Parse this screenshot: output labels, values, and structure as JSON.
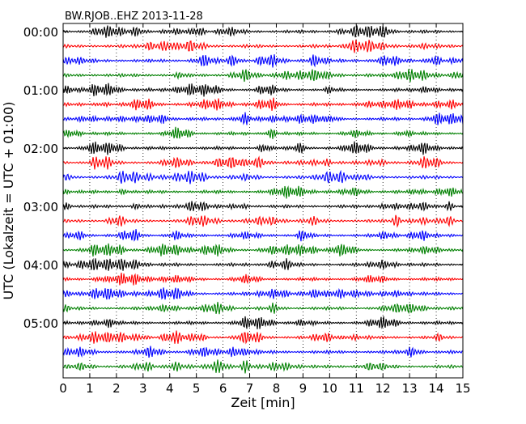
{
  "chart_data": {
    "type": "line",
    "title": "BW.RJOB..EHZ 2013-11-28",
    "xlabel": "Zeit  [min]",
    "ylabel": "UTC (Lokalzeit = UTC + 01:00)",
    "xlim": [
      0,
      15
    ],
    "x_ticks": [
      "0",
      "1",
      "2",
      "3",
      "4",
      "5",
      "6",
      "7",
      "8",
      "9",
      "10",
      "11",
      "12",
      "13",
      "14",
      "15"
    ],
    "y_tick_labels": [
      "00:00",
      "01:00",
      "02:00",
      "03:00",
      "04:00",
      "05:00"
    ],
    "grid": "vertical-dotted",
    "trace_count": 24,
    "minutes_per_trace": 15,
    "color_cycle": [
      "#000000",
      "#ff0000",
      "#0000ff",
      "#008000"
    ]
  }
}
